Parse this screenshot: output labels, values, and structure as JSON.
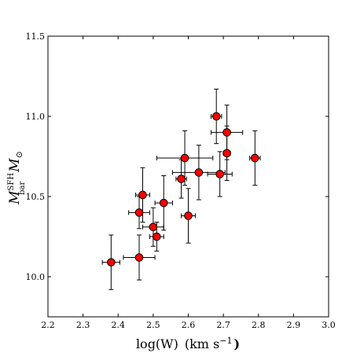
{
  "chart_data": {
    "type": "scatter",
    "title": "",
    "xlabel": {
      "main": "log(W)",
      "unit": "(km s",
      "sup": "−1",
      "close": ")"
    },
    "ylabel": {
      "main": "M",
      "sub": "bar",
      "sup": "SFH",
      "unit": "M",
      "unit_sub": "⊙"
    },
    "xlim": [
      2.2,
      3.0
    ],
    "ylim": [
      9.75,
      11.5
    ],
    "x_ticks": [
      "2.2",
      "2.3",
      "2.4",
      "2.5",
      "2.6",
      "2.7",
      "2.8",
      "2.9",
      "3.0"
    ],
    "y_ticks": [
      "10.0",
      "10.5",
      "11.0",
      "11.5"
    ],
    "grid": false,
    "marker_color": "#ff0000",
    "points": [
      {
        "x": 2.38,
        "y": 10.09,
        "xerr": 0.025,
        "yerr": 0.17
      },
      {
        "x": 2.46,
        "y": 10.12,
        "xerr": 0.045,
        "yerr": 0.14
      },
      {
        "x": 2.46,
        "y": 10.4,
        "xerr": 0.03,
        "yerr": 0.1
      },
      {
        "x": 2.47,
        "y": 10.51,
        "xerr": 0.02,
        "yerr": 0.17
      },
      {
        "x": 2.5,
        "y": 10.31,
        "xerr": 0.03,
        "yerr": 0.12
      },
      {
        "x": 2.51,
        "y": 10.25,
        "xerr": 0.02,
        "yerr": 0.09
      },
      {
        "x": 2.53,
        "y": 10.46,
        "xerr": 0.025,
        "yerr": 0.17
      },
      {
        "x": 2.58,
        "y": 10.61,
        "xerr": 0.015,
        "yerr": 0.12
      },
      {
        "x": 2.59,
        "y": 10.74,
        "xerr": 0.08,
        "yerr": 0.17
      },
      {
        "x": 2.6,
        "y": 10.38,
        "xerr": 0.02,
        "yerr": 0.17
      },
      {
        "x": 2.63,
        "y": 10.65,
        "xerr": 0.075,
        "yerr": 0.17
      },
      {
        "x": 2.68,
        "y": 11.0,
        "xerr": 0.015,
        "yerr": 0.17
      },
      {
        "x": 2.69,
        "y": 10.64,
        "xerr": 0.035,
        "yerr": 0.14
      },
      {
        "x": 2.71,
        "y": 10.9,
        "xerr": 0.045,
        "yerr": 0.17
      },
      {
        "x": 2.71,
        "y": 10.77,
        "xerr": 0.01,
        "yerr": 0.17
      },
      {
        "x": 2.79,
        "y": 10.74,
        "xerr": 0.015,
        "yerr": 0.17
      }
    ]
  }
}
